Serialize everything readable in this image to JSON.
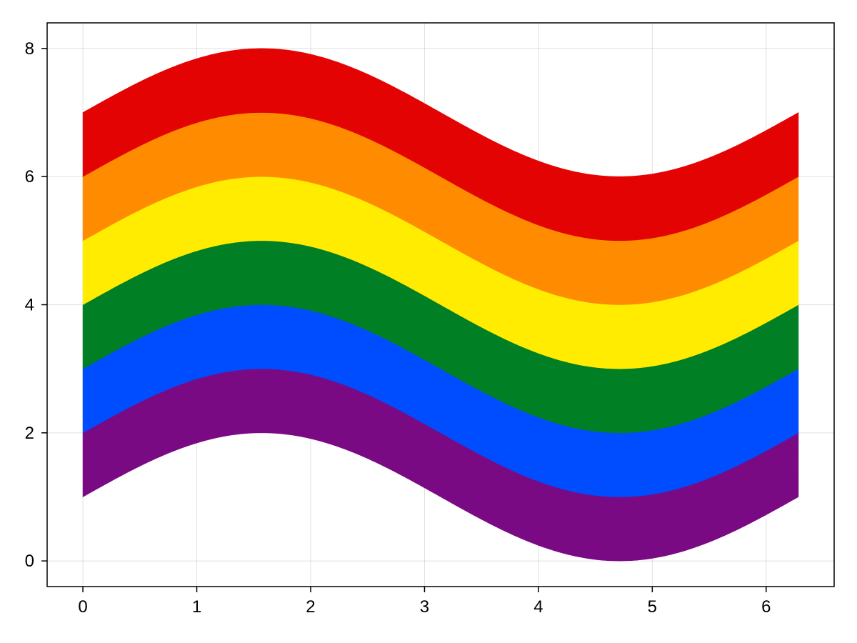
{
  "chart_data": {
    "type": "area",
    "title": "",
    "xlabel": "",
    "ylabel": "",
    "xlim": [
      -0.314,
      6.597
    ],
    "ylim": [
      -0.4,
      8.4
    ],
    "x_ticks": [
      "0",
      "1",
      "2",
      "3",
      "4",
      "5",
      "6"
    ],
    "y_ticks": [
      "0",
      "2",
      "4",
      "6",
      "8"
    ],
    "x_tick_values": [
      0,
      1,
      2,
      3,
      4,
      5,
      6
    ],
    "y_tick_values": [
      0,
      2,
      4,
      6,
      8
    ],
    "grid": true,
    "legend": "none",
    "x_range": [
      0,
      6.2832
    ],
    "curve": "y = offset + sin(x)",
    "bands": [
      {
        "color": "#7a0a83",
        "lower_offset": 1,
        "upper_offset": 2
      },
      {
        "color": "#004cff",
        "lower_offset": 2,
        "upper_offset": 3
      },
      {
        "color": "#007f25",
        "lower_offset": 3,
        "upper_offset": 4
      },
      {
        "color": "#ffec00",
        "lower_offset": 4,
        "upper_offset": 5
      },
      {
        "color": "#ff8c00",
        "lower_offset": 5,
        "upper_offset": 6
      },
      {
        "color": "#e40303",
        "lower_offset": 6,
        "upper_offset": 7
      }
    ]
  }
}
